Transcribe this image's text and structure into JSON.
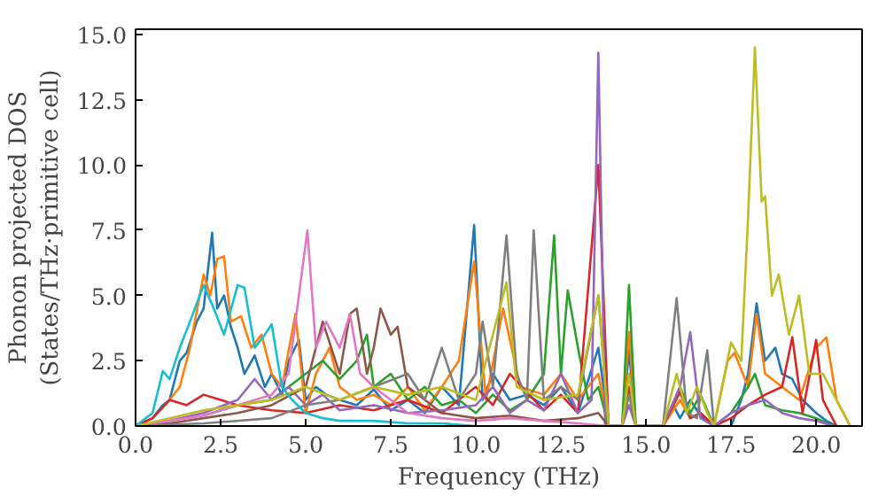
{
  "chart_data": {
    "type": "line",
    "xlabel": "Frequency (THz)",
    "ylabel": "Phonon projected DOS\n(States/THz·primitive cell)",
    "xlim": [
      0,
      21.35
    ],
    "ylim": [
      0,
      15.2
    ],
    "xticks": [
      {
        "value": 0,
        "label": "0.0"
      },
      {
        "value": 2.5,
        "label": "2.5"
      },
      {
        "value": 5,
        "label": "5.0"
      },
      {
        "value": 7.5,
        "label": "7.5"
      },
      {
        "value": 10,
        "label": "10.0"
      },
      {
        "value": 12.5,
        "label": "12.5"
      },
      {
        "value": 15,
        "label": "15.0"
      },
      {
        "value": 17.5,
        "label": "17.5"
      },
      {
        "value": 20,
        "label": "20.0"
      }
    ],
    "yticks": [
      {
        "value": 0,
        "label": "0.0"
      },
      {
        "value": 2.5,
        "label": "2.5"
      },
      {
        "value": 5,
        "label": "5.0"
      },
      {
        "value": 7.5,
        "label": "7.5"
      },
      {
        "value": 10,
        "label": "10.0"
      },
      {
        "value": 12.5,
        "label": "12.5"
      },
      {
        "value": 15,
        "label": "15.0"
      }
    ],
    "grid": false,
    "line_style": "solid",
    "series": [
      {
        "color": "#1f77b4",
        "x": [
          0,
          0.5,
          0.8,
          1,
          1.3,
          1.5,
          1.8,
          2,
          2.25,
          2.4,
          2.6,
          2.8,
          3,
          3.2,
          3.5,
          3.8,
          4,
          4.3,
          4.5,
          4.8,
          5,
          5.3,
          5.6,
          6,
          6.5,
          7,
          7.5,
          8,
          8.5,
          9,
          9.5,
          9.95,
          10.2,
          10.5,
          11,
          11.5,
          12,
          12.5,
          13,
          13.6,
          13.9,
          14.3,
          14.5,
          14.7,
          15.5,
          15.8,
          16,
          16.3,
          16.6,
          17,
          17.5,
          17.8,
          18,
          18.25,
          18.5,
          18.8,
          19,
          19.3,
          19.6,
          20,
          20.3,
          20.6
        ],
        "values": [
          0,
          0.3,
          0.8,
          1.0,
          2.5,
          2.8,
          4.0,
          4.5,
          7.4,
          4.5,
          5.0,
          3.8,
          3.0,
          2.0,
          2.7,
          1.5,
          2.0,
          1.2,
          2.5,
          3.3,
          1.0,
          1.5,
          1.2,
          1.0,
          0.8,
          1.4,
          0.6,
          1.0,
          0.5,
          1.5,
          0.8,
          7.7,
          1.0,
          2.0,
          1.0,
          1.2,
          0.8,
          1.5,
          0.5,
          3.0,
          0,
          0,
          2.9,
          0,
          0,
          0.8,
          0.3,
          1.0,
          0.4,
          0,
          0,
          1.0,
          2.0,
          4.7,
          2.5,
          3.0,
          2.0,
          1.8,
          1.0,
          0.5,
          0.2,
          0
        ]
      },
      {
        "color": "#ff7f0e",
        "x": [
          0,
          0.5,
          1,
          1.3,
          1.6,
          2,
          2.2,
          2.4,
          2.6,
          2.8,
          3.1,
          3.4,
          3.7,
          4,
          4.3,
          4.7,
          5,
          5.3,
          5.7,
          6,
          6.5,
          7,
          7.5,
          8,
          8.5,
          9,
          9.5,
          9.95,
          10.3,
          10.8,
          11.3,
          12,
          12.5,
          13,
          13.6,
          13.9,
          14.3,
          14.5,
          14.7,
          15.5,
          16,
          16.3,
          16.6,
          17,
          17.4,
          17.6,
          18,
          18.25,
          18.5,
          19,
          19.5,
          20,
          20.3,
          20.6,
          21
        ],
        "values": [
          0,
          0.3,
          1.0,
          1.5,
          3.0,
          5.8,
          5.0,
          6.4,
          6.5,
          4.0,
          4.2,
          3.0,
          3.5,
          2.0,
          1.5,
          4.3,
          0.5,
          2.0,
          3.0,
          1.5,
          1.0,
          1.2,
          0.8,
          1.5,
          0.6,
          1.5,
          2.5,
          6.3,
          1.0,
          4.5,
          1.5,
          1.2,
          2.0,
          1.0,
          2.0,
          0,
          0,
          3.6,
          0,
          0,
          1.0,
          0.3,
          0.5,
          0,
          2.5,
          2.8,
          1.5,
          4.3,
          2.0,
          1.5,
          1.0,
          3.0,
          3.4,
          1.0,
          0
        ]
      },
      {
        "color": "#2ca02c",
        "x": [
          2,
          3,
          4,
          4.5,
          5,
          5.5,
          6,
          6.5,
          6.8,
          7,
          7.5,
          8,
          8.5,
          9,
          9.5,
          10,
          10.5,
          11,
          11.5,
          12,
          12.3,
          12.5,
          12.7,
          13,
          13.3,
          13.6,
          13.9,
          14.3,
          14.5,
          14.7,
          15.5,
          16,
          16.3,
          16.6,
          17,
          17.5,
          18,
          18.2,
          18.5,
          19,
          19.5,
          20,
          20.5
        ],
        "values": [
          0.4,
          0.8,
          1.0,
          1.5,
          2.0,
          2.5,
          1.8,
          2.5,
          3.5,
          1.5,
          2.0,
          1.0,
          1.5,
          0.8,
          1.0,
          0.5,
          1.2,
          0.6,
          1.0,
          2.0,
          7.3,
          2.0,
          5.2,
          3.0,
          1.0,
          1.5,
          0,
          0,
          5.4,
          0,
          0,
          1.5,
          0.5,
          1.2,
          0,
          0.5,
          1.5,
          2.0,
          0.8,
          0.6,
          0.5,
          0.3,
          0
        ]
      },
      {
        "color": "#d62728",
        "x": [
          0,
          0.5,
          1,
          1.5,
          2,
          2.5,
          3,
          4,
          5,
          6,
          7,
          8,
          9,
          10,
          10.5,
          11,
          12,
          12.5,
          13,
          13.6,
          13.9,
          14.3,
          14.5,
          14.7,
          15.5,
          16,
          16.3,
          16.6,
          17,
          17.5,
          18,
          18.5,
          19,
          19.3,
          19.6,
          20,
          20.2,
          20.6
        ],
        "values": [
          0,
          0.3,
          1.0,
          0.8,
          1.2,
          1.0,
          0.8,
          0.6,
          0.5,
          0.8,
          0.6,
          1.0,
          0.5,
          1.5,
          0.8,
          2.0,
          0.6,
          1.2,
          0.5,
          10.0,
          0,
          0,
          1.5,
          0,
          0,
          1.3,
          0.3,
          0.5,
          0,
          0.3,
          0.8,
          1.2,
          1.5,
          3.4,
          0.5,
          3.3,
          1.0,
          0
        ]
      },
      {
        "color": "#9467bd",
        "x": [
          0,
          1,
          2,
          3,
          3.5,
          4,
          4.5,
          5,
          5.5,
          6,
          7,
          8,
          9,
          10,
          10.5,
          11,
          11.5,
          12,
          12.5,
          13,
          13.4,
          13.6,
          13.8,
          14.3,
          14.5,
          14.7,
          15.5,
          16,
          16.3,
          16.6,
          17,
          17.5,
          18,
          18.5,
          19,
          19.5,
          20,
          20.5
        ],
        "values": [
          0,
          0.2,
          0.5,
          1.0,
          1.8,
          1.0,
          1.5,
          0.8,
          1.2,
          0.6,
          0.8,
          0.5,
          0.6,
          0.8,
          1.5,
          0.5,
          1.0,
          0.6,
          2.0,
          0.5,
          1.0,
          14.3,
          0,
          0,
          0.8,
          0,
          0,
          1.5,
          3.6,
          0.3,
          0,
          0.5,
          0.8,
          1.0,
          0.5,
          0.3,
          0.2,
          0
        ]
      },
      {
        "color": "#8c564b",
        "x": [
          0,
          1,
          2,
          3,
          4,
          5,
          5.5,
          6,
          6.3,
          6.5,
          6.8,
          7,
          7.2,
          7.5,
          7.7,
          8,
          8.5,
          9,
          10,
          11,
          12,
          13,
          13.6,
          13.9
        ],
        "values": [
          0,
          0.1,
          0.3,
          0.5,
          0.8,
          1.5,
          4.0,
          2.0,
          4.3,
          4.5,
          2.0,
          3.0,
          4.5,
          3.5,
          3.8,
          1.5,
          1.0,
          0.5,
          0.3,
          0.4,
          0.2,
          0.3,
          0.5,
          0
        ]
      },
      {
        "color": "#e377c2",
        "x": [
          0,
          1,
          2,
          3,
          4,
          4.5,
          4.8,
          5.05,
          5.3,
          5.6,
          6,
          6.3,
          6.6,
          7,
          7.5,
          8,
          9,
          10,
          11,
          12,
          13,
          13.9
        ],
        "values": [
          0,
          0.2,
          0.4,
          0.8,
          1.2,
          2.0,
          5.0,
          7.5,
          3.0,
          4.0,
          3.0,
          4.3,
          2.0,
          1.5,
          1.0,
          0.5,
          0.3,
          0.2,
          0.3,
          0.2,
          0.1,
          0
        ]
      },
      {
        "color": "#7f7f7f",
        "x": [
          0,
          2,
          4,
          5,
          6,
          7,
          8,
          8.5,
          9,
          9.5,
          10,
          10.2,
          10.5,
          10.9,
          11.2,
          11.5,
          11.7,
          12,
          12.5,
          13,
          13.6,
          13.9,
          14.3,
          14.5,
          14.7,
          15.5,
          15.9,
          16.2,
          16.5,
          16.8,
          17
        ],
        "values": [
          0,
          0.1,
          0.3,
          0.8,
          1.0,
          1.5,
          2.0,
          1.0,
          3.0,
          1.0,
          2.0,
          4.0,
          1.5,
          7.3,
          2.0,
          1.0,
          7.5,
          1.0,
          1.5,
          1.0,
          5.0,
          0,
          0,
          1.2,
          0,
          0,
          4.9,
          0.5,
          0.3,
          2.9,
          0
        ]
      },
      {
        "color": "#bcbd22",
        "x": [
          0,
          1,
          2,
          3,
          4,
          5,
          6,
          7,
          8,
          9,
          10,
          10.9,
          11.2,
          12,
          13,
          13.6,
          13.9,
          14.3,
          14.5,
          14.7,
          15.5,
          15.9,
          16.2,
          16.5,
          16.8,
          17,
          17.5,
          17.8,
          18,
          18.2,
          18.4,
          18.5,
          18.7,
          18.9,
          19.2,
          19.5,
          19.8,
          20.2,
          20.6,
          21
        ],
        "values": [
          0,
          0.3,
          0.6,
          0.8,
          1.0,
          1.5,
          1.0,
          1.5,
          1.2,
          1.5,
          1.0,
          5.5,
          1.5,
          1.0,
          1.2,
          5.0,
          0,
          0,
          2.0,
          0,
          0,
          2.0,
          0.5,
          1.5,
          0.5,
          0,
          3.2,
          2.5,
          8.0,
          14.5,
          8.6,
          8.8,
          5.0,
          5.8,
          3.5,
          5.0,
          2.0,
          2.0,
          1.0,
          0
        ]
      },
      {
        "color": "#17becf",
        "x": [
          0,
          0.5,
          0.8,
          1,
          1.3,
          1.6,
          2,
          2.3,
          2.6,
          3,
          3.2,
          3.5,
          3.8,
          4,
          4.3,
          4.6,
          5,
          5.5,
          6,
          7,
          8,
          9,
          10
        ],
        "values": [
          0,
          0.5,
          2.1,
          1.8,
          3.0,
          4.0,
          5.4,
          4.5,
          3.5,
          5.4,
          5.3,
          3.0,
          3.5,
          3.9,
          1.5,
          1.0,
          0.5,
          0.3,
          0.2,
          0.2,
          0.1,
          0.1,
          0
        ]
      }
    ]
  }
}
